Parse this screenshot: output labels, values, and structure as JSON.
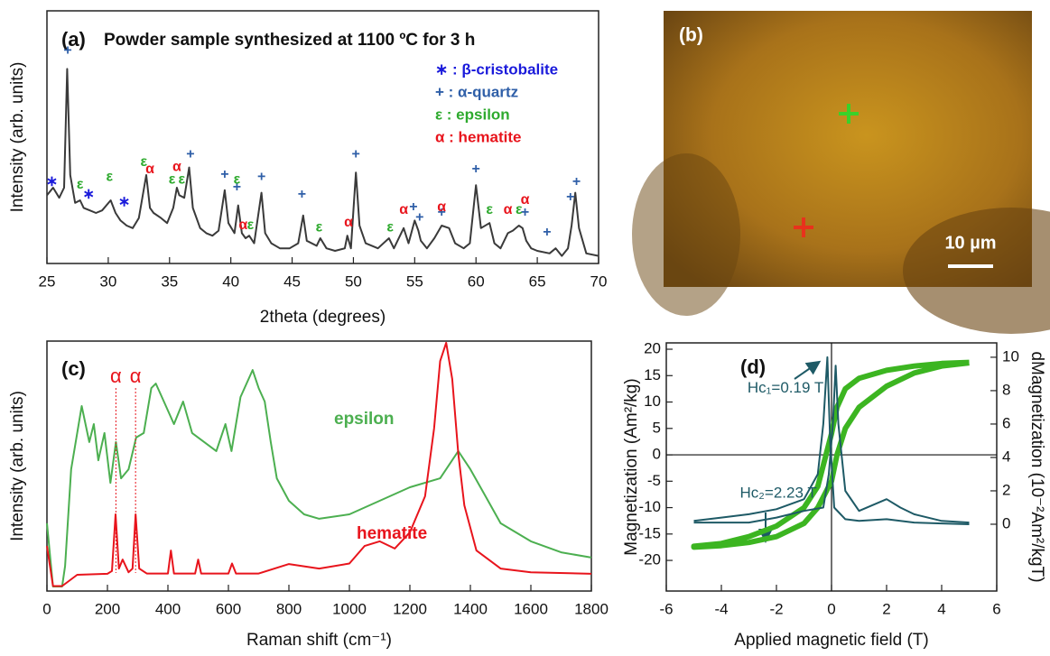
{
  "chart_data": [
    {
      "type": "line",
      "label": "(a)",
      "title": "Powder sample synthesized at 1100 ºC for 3 h",
      "x_label": "2theta (degrees)",
      "y_label": "Intensity (arb. units)",
      "color": "#3a3a3a",
      "x": [
        25,
        25.5,
        26,
        26.4,
        26.65,
        26.9,
        27.3,
        27.7,
        28,
        28.5,
        29,
        29.5,
        30.2,
        30.6,
        31,
        31.5,
        32,
        32.5,
        33.1,
        33.4,
        33.7,
        34.3,
        34.8,
        35.3,
        35.6,
        35.8,
        36.2,
        36.6,
        36.9,
        37.5,
        38,
        38.5,
        39,
        39.5,
        39.8,
        40.3,
        40.6,
        40.9,
        41.2,
        41.5,
        41.9,
        42.5,
        42.8,
        43.3,
        44,
        44.8,
        45.5,
        45.9,
        46.2,
        47,
        47.3,
        47.8,
        48.5,
        49.3,
        49.5,
        49.8,
        50.2,
        50.5,
        51,
        52,
        52.9,
        53.3,
        54.1,
        54.5,
        55,
        55.3,
        55.5,
        56,
        56.6,
        57.2,
        57.8,
        58.3,
        59,
        59.5,
        60,
        60.4,
        61.1,
        61.5,
        62,
        62.6,
        63,
        63.5,
        63.8,
        64.1,
        64.5,
        65,
        66,
        66.5,
        67,
        67.5,
        67.8,
        68.1,
        68.4,
        69,
        70
      ],
      "values": [
        27,
        30,
        26,
        30,
        77,
        35,
        24,
        25,
        22,
        21,
        20,
        21,
        25,
        20,
        17,
        15,
        14,
        18,
        35,
        22,
        20,
        18,
        16,
        22,
        30,
        27,
        26,
        38,
        22,
        14,
        12,
        11,
        13,
        29,
        16,
        12,
        23,
        12,
        10,
        11,
        8,
        28,
        12,
        8,
        6,
        6,
        8,
        19,
        9,
        7,
        10,
        6,
        5,
        6,
        11,
        6,
        36,
        15,
        8,
        6,
        10,
        6,
        14,
        8,
        17,
        13,
        9,
        6,
        10,
        15,
        14,
        8,
        6,
        8,
        31,
        14,
        16,
        8,
        6,
        12,
        13,
        15,
        14,
        9,
        6,
        5,
        4,
        6,
        3,
        6,
        15,
        28,
        14,
        4,
        3
      ],
      "xlim": [
        25,
        70
      ],
      "ylim": [
        0,
        100
      ],
      "xticks": [
        25,
        30,
        35,
        40,
        45,
        50,
        55,
        60,
        65,
        70
      ],
      "legend": [
        {
          "text": "∗ : β-cristobalite",
          "color": "#1a1adb"
        },
        {
          "text": "+ :  α-quartz",
          "color": "#2f5fa8"
        },
        {
          "text": "ε : epsilon",
          "color": "#2eaa2e"
        },
        {
          "text": "α : hematite",
          "color": "#e8141c"
        }
      ],
      "annotations": [
        {
          "text": "∗",
          "x": 25.4,
          "y": 30,
          "color": "#1a1adb"
        },
        {
          "text": "∗",
          "x": 28.4,
          "y": 25,
          "color": "#1a1adb"
        },
        {
          "text": "∗",
          "x": 31.3,
          "y": 22,
          "color": "#1a1adb"
        },
        {
          "text": "+",
          "x": 26.7,
          "y": 82,
          "color": "#2f5fa8"
        },
        {
          "text": "+",
          "x": 36.7,
          "y": 41,
          "color": "#2f5fa8"
        },
        {
          "text": "+",
          "x": 39.5,
          "y": 33,
          "color": "#2f5fa8"
        },
        {
          "text": "+",
          "x": 40.5,
          "y": 28,
          "color": "#2f5fa8"
        },
        {
          "text": "+",
          "x": 42.5,
          "y": 32,
          "color": "#2f5fa8"
        },
        {
          "text": "+",
          "x": 45.8,
          "y": 25,
          "color": "#2f5fa8"
        },
        {
          "text": "+",
          "x": 50.2,
          "y": 41,
          "color": "#2f5fa8"
        },
        {
          "text": "+",
          "x": 54.9,
          "y": 20,
          "color": "#2f5fa8"
        },
        {
          "text": "+",
          "x": 55.4,
          "y": 16,
          "color": "#2f5fa8"
        },
        {
          "text": "+",
          "x": 57.2,
          "y": 18,
          "color": "#2f5fa8"
        },
        {
          "text": "+",
          "x": 60,
          "y": 35,
          "color": "#2f5fa8"
        },
        {
          "text": "+",
          "x": 64,
          "y": 18,
          "color": "#2f5fa8"
        },
        {
          "text": "+",
          "x": 65.8,
          "y": 10,
          "color": "#2f5fa8"
        },
        {
          "text": "+",
          "x": 67.7,
          "y": 24,
          "color": "#2f5fa8"
        },
        {
          "text": "+",
          "x": 68.2,
          "y": 30,
          "color": "#2f5fa8"
        },
        {
          "text": "ε",
          "x": 27.7,
          "y": 29,
          "color": "#2eaa2e"
        },
        {
          "text": "ε",
          "x": 30.1,
          "y": 32,
          "color": "#2eaa2e"
        },
        {
          "text": "ε",
          "x": 32.9,
          "y": 38,
          "color": "#2eaa2e"
        },
        {
          "text": "ε",
          "x": 35.2,
          "y": 31,
          "color": "#2eaa2e"
        },
        {
          "text": "ε",
          "x": 36,
          "y": 31,
          "color": "#2eaa2e"
        },
        {
          "text": "ε",
          "x": 40.5,
          "y": 31,
          "color": "#2eaa2e"
        },
        {
          "text": "ε",
          "x": 41.6,
          "y": 13,
          "color": "#2eaa2e"
        },
        {
          "text": "ε",
          "x": 47.2,
          "y": 12,
          "color": "#2eaa2e"
        },
        {
          "text": "ε",
          "x": 53,
          "y": 12,
          "color": "#2eaa2e"
        },
        {
          "text": "ε",
          "x": 61.1,
          "y": 19,
          "color": "#2eaa2e"
        },
        {
          "text": "ε",
          "x": 63.5,
          "y": 19,
          "color": "#2eaa2e"
        },
        {
          "text": "α",
          "x": 33.4,
          "y": 35,
          "color": "#e8141c"
        },
        {
          "text": "α",
          "x": 35.6,
          "y": 36,
          "color": "#e8141c"
        },
        {
          "text": "α",
          "x": 41,
          "y": 13,
          "color": "#e8141c"
        },
        {
          "text": "α",
          "x": 49.6,
          "y": 14,
          "color": "#e8141c"
        },
        {
          "text": "α",
          "x": 54.1,
          "y": 19,
          "color": "#e8141c"
        },
        {
          "text": "α",
          "x": 57.2,
          "y": 20,
          "color": "#e8141c"
        },
        {
          "text": "α",
          "x": 62.6,
          "y": 19,
          "color": "#e8141c"
        },
        {
          "text": "α",
          "x": 64,
          "y": 23,
          "color": "#e8141c"
        }
      ]
    },
    {
      "type": "image",
      "label": "(b)",
      "scale_bar": "10 µm"
    },
    {
      "type": "line",
      "label": "(c)",
      "x_label": "Raman shift (cm⁻¹)",
      "y_label": "Intensity (arb. units)",
      "series": [
        {
          "name": "epsilon",
          "color": "#4caf50",
          "x": [
            0,
            20,
            50,
            60,
            80,
            115,
            140,
            155,
            170,
            190,
            210,
            228,
            245,
            270,
            295,
            320,
            345,
            360,
            380,
            420,
            450,
            480,
            520,
            560,
            590,
            610,
            640,
            680,
            700,
            720,
            740,
            760,
            800,
            850,
            900,
            1000,
            1100,
            1200,
            1300,
            1360,
            1400,
            1450,
            1500,
            1600,
            1700,
            1800
          ],
          "values": [
            27.1,
            1.8,
            1.8,
            10,
            48.7,
            74,
            59.6,
            66.8,
            52.3,
            63.2,
            43.3,
            59.6,
            45.1,
            48.7,
            61.4,
            63.2,
            81.2,
            83,
            77.6,
            66.8,
            75.8,
            63.2,
            59.6,
            56,
            66.8,
            56,
            77.6,
            88.4,
            81.2,
            75.8,
            59.6,
            45.1,
            36.1,
            30.7,
            28.9,
            30.7,
            36.1,
            41.5,
            45.1,
            56,
            48.7,
            37.9,
            27.1,
            19.9,
            15.5,
            13.4
          ]
        },
        {
          "name": "hematite",
          "color": "#e8141c",
          "x": [
            0,
            20,
            50,
            100,
            200,
            215,
            227,
            238,
            250,
            270,
            283,
            293,
            305,
            330,
            400,
            410,
            420,
            490,
            500,
            510,
            600,
            612,
            625,
            700,
            800,
            900,
            1000,
            1050,
            1100,
            1150,
            1200,
            1250,
            1280,
            1300,
            1320,
            1340,
            1360,
            1380,
            1420,
            1500,
            1600,
            1800
          ],
          "values": [
            18,
            2,
            2,
            6.5,
            6.9,
            8,
            30.7,
            9,
            12.6,
            7.5,
            9,
            30.7,
            9,
            7,
            7,
            16.2,
            7,
            7,
            12.6,
            7,
            7,
            11,
            7,
            7,
            10.8,
            9,
            11,
            18,
            19.9,
            17,
            23.5,
            37.9,
            65,
            92,
            99.3,
            84.8,
            55,
            34.3,
            16.2,
            9,
            7.5,
            6.9
          ]
        }
      ],
      "xlim": [
        0,
        1800
      ],
      "ylim": [
        0,
        100
      ],
      "xticks": [
        0,
        200,
        400,
        600,
        800,
        1000,
        1200,
        1400,
        1600,
        1800
      ],
      "annotations": [
        {
          "text": "α",
          "x": 228,
          "color": "#e8141c"
        },
        {
          "text": "α",
          "x": 293,
          "color": "#e8141c"
        }
      ]
    },
    {
      "type": "line",
      "label": "(d)",
      "x_label": "Applied magnetic field (T)",
      "y_label": "Magnetization (Am²/kg)",
      "y2_label": "dMagnetization (10⁻²Am²/kgT)",
      "xlim": [
        -6,
        6
      ],
      "ylim": [
        -25.8,
        21.2
      ],
      "y2lim": [
        -4,
        10.86
      ],
      "xticks": [
        -6,
        -4,
        -2,
        0,
        2,
        4,
        6
      ],
      "yticks": [
        -20,
        -15,
        -10,
        -5,
        0,
        5,
        10,
        15,
        20
      ],
      "y2ticks": [
        0,
        2,
        4,
        6,
        8,
        10
      ],
      "series": [
        {
          "color": "#3cb521",
          "x": [
            5,
            4,
            3,
            2,
            1,
            0.5,
            0.2,
            0,
            -0.2,
            -0.5,
            -1,
            -2,
            -3,
            -4,
            -5,
            -5,
            -4,
            -3,
            -2,
            -1,
            -0.5,
            0,
            0.2,
            0.5,
            1,
            2,
            3,
            4,
            5
          ],
          "values": [
            17.5,
            17.3,
            16.8,
            16,
            14.5,
            12.5,
            9,
            4,
            0,
            -6,
            -10,
            -13.5,
            -15.5,
            -16.8,
            -17.3,
            -17.5,
            -17.2,
            -16.6,
            -15.5,
            -13,
            -10,
            -5,
            0,
            5,
            9,
            13,
            15.5,
            16.8,
            17.4
          ]
        },
        {
          "color": "#1e5a66",
          "axis": "y2",
          "x": [
            -5,
            -4,
            -3,
            -2,
            -1,
            -0.5,
            -0.3,
            -0.15,
            -0.05,
            0.1,
            0.5,
            1,
            2,
            3,
            4,
            5
          ],
          "values": [
            0.2,
            0.4,
            0.6,
            0.9,
            1.5,
            3,
            6,
            10,
            5,
            1,
            0.3,
            0.2,
            0.3,
            0.1,
            0.05,
            0
          ]
        },
        {
          "color": "#1e5a66",
          "axis": "y2",
          "x": [
            -5,
            -3,
            -2,
            -1,
            -0.3,
            -0.1,
            0.05,
            0.15,
            0.25,
            0.5,
            1,
            2,
            2.5,
            3,
            4,
            5
          ],
          "values": [
            0.1,
            0.1,
            0.4,
            0.8,
            1,
            3,
            6,
            9.5,
            6,
            2,
            0.8,
            1.5,
            1,
            0.6,
            0.2,
            0.1
          ]
        }
      ],
      "annotations": [
        {
          "text": "Hc₁=0.19 T",
          "x": -1.67,
          "y": 11.5,
          "color": "#1e5a66"
        },
        {
          "text": "Hc₂=2.23 T",
          "x": -1.93,
          "y": -8.4,
          "color": "#1e5a66"
        }
      ]
    }
  ]
}
